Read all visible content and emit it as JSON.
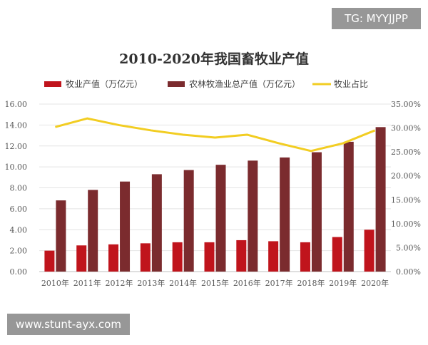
{
  "watermarks": {
    "top_right": "TG: MYYJJPP",
    "bottom_left": "www.stunt-ayx.com"
  },
  "chart_data": {
    "type": "bar",
    "title": "2010-2020年我国畜牧业产值",
    "categories": [
      "2010年",
      "2011年",
      "2012年",
      "2013年",
      "2014年",
      "2015年",
      "2016年",
      "2017年",
      "2018年",
      "2019年",
      "2020年"
    ],
    "series": [
      {
        "name": "牧业产值（万亿元）",
        "kind": "bar",
        "axis": "left",
        "color": "#c0141c",
        "values": [
          2.0,
          2.5,
          2.6,
          2.7,
          2.8,
          2.8,
          3.0,
          2.9,
          2.8,
          3.3,
          4.0
        ]
      },
      {
        "name": "农林牧渔业总产值（万亿元）",
        "kind": "bar",
        "axis": "left",
        "color": "#7b2b2e",
        "values": [
          6.8,
          7.8,
          8.6,
          9.3,
          9.7,
          10.2,
          10.6,
          10.9,
          11.4,
          12.4,
          13.8
        ]
      },
      {
        "name": "牧业占比",
        "kind": "line",
        "axis": "right",
        "color": "#f2cd22",
        "values": [
          30.2,
          32.0,
          30.6,
          29.5,
          28.6,
          28.0,
          28.6,
          26.8,
          25.2,
          26.8,
          29.5
        ]
      }
    ],
    "y_left": {
      "min": 0,
      "max": 16,
      "step": 2,
      "tick_labels": [
        "0.00",
        "2.00",
        "4.00",
        "6.00",
        "8.00",
        "10.00",
        "12.00",
        "14.00",
        "16.00"
      ]
    },
    "y_right": {
      "min": 0,
      "max": 35,
      "step": 5,
      "tick_labels": [
        "0.00%",
        "5.00%",
        "10.00%",
        "15.00%",
        "20.00%",
        "25.00%",
        "30.00%",
        "35.00%"
      ]
    },
    "grid": true,
    "legend_position": "top"
  }
}
